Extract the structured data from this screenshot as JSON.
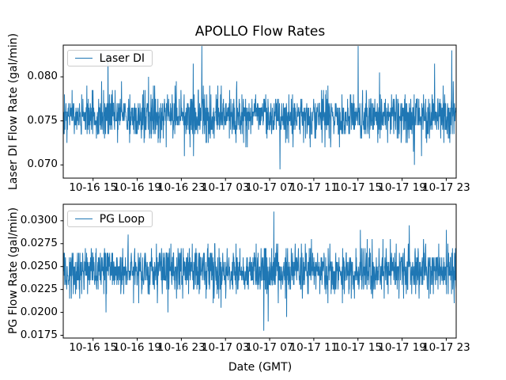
{
  "figure": {
    "title": "APOLLO Flow Rates",
    "xlabel": "Date (GMT)",
    "background": "#ffffff",
    "line_color": "#1f77b4",
    "text_color": "#000000"
  },
  "chart_data": [
    {
      "type": "line",
      "ylabel": "Laser DI Flow Rate (gal/min)",
      "legend": {
        "label": "Laser DI",
        "position": "upper left"
      },
      "grid": false,
      "xlim_hours": [
        12.3,
        47.9
      ],
      "x_ticks_hours": [
        15,
        19,
        23,
        27,
        31,
        35,
        39,
        43,
        47
      ],
      "x_tick_labels": [
        "10-16 15",
        "10-16 19",
        "10-16 23",
        "10-17 03",
        "10-17 07",
        "10-17 11",
        "10-17 15",
        "10-17 19",
        "10-17 23"
      ],
      "ylim": [
        0.0685,
        0.0836
      ],
      "y_ticks": [
        0.07,
        0.075,
        0.08
      ],
      "y_tick_labels": [
        "0.070",
        "0.075",
        "0.080"
      ],
      "series": {
        "name": "Laser DI",
        "color": "#1f77b4",
        "baseline": 0.0755,
        "core_band": [
          0.074,
          0.077
        ],
        "sigma": 0.0013,
        "quantize_step": 0.0005,
        "observed_min": 0.069,
        "observed_max": 0.0835,
        "n_points": 1600,
        "seed": 20,
        "spike_prob": 0.006,
        "spike_extra_max": 0.006
      }
    },
    {
      "type": "line",
      "ylabel": "PG Flow Rate (gal/min)",
      "legend": {
        "label": "PG Loop",
        "position": "upper left"
      },
      "grid": false,
      "xlim_hours": [
        12.3,
        47.9
      ],
      "x_ticks_hours": [
        15,
        19,
        23,
        27,
        31,
        35,
        39,
        43,
        47
      ],
      "x_tick_labels": [
        "10-16 15",
        "10-16 19",
        "10-16 23",
        "10-17 03",
        "10-17 07",
        "10-17 11",
        "10-17 15",
        "10-17 19",
        "10-17 23"
      ],
      "ylim": [
        0.0172,
        0.0318
      ],
      "y_ticks": [
        0.0175,
        0.02,
        0.0225,
        0.025,
        0.0275,
        0.03
      ],
      "y_tick_labels": [
        "0.0175",
        "0.0200",
        "0.0225",
        "0.0250",
        "0.0275",
        "0.0300"
      ],
      "series": {
        "name": "PG Loop",
        "color": "#1f77b4",
        "baseline": 0.0245,
        "core_band": [
          0.023,
          0.026
        ],
        "sigma": 0.0013,
        "quantize_step": 0.0005,
        "observed_min": 0.018,
        "observed_max": 0.031,
        "n_points": 1600,
        "seed": 77,
        "spike_prob": 0.006,
        "spike_extra_max": 0.005
      }
    }
  ]
}
